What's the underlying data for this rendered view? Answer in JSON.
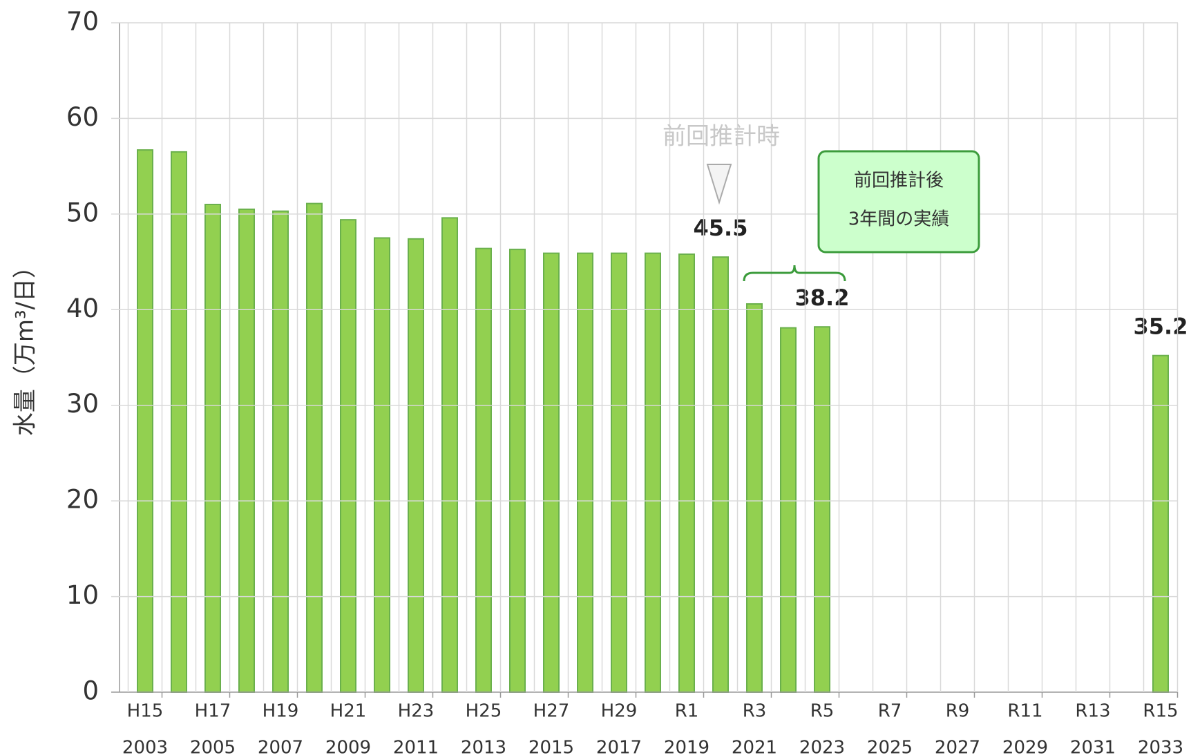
{
  "chart_data": {
    "type": "bar",
    "ylabel": "水量（万m³/日）",
    "categories": [
      "2003",
      null,
      "2005",
      null,
      "2007",
      null,
      "2009",
      null,
      "2011",
      null,
      "2013",
      null,
      "2015",
      null,
      "2017",
      null,
      "2019",
      null,
      "2021",
      null,
      "2023",
      null,
      "2025",
      null,
      "2027",
      null,
      "2029",
      null,
      "2031",
      null,
      "2033"
    ],
    "era_labels": [
      "H15",
      null,
      "H17",
      null,
      "H19",
      null,
      "H21",
      null,
      "H23",
      null,
      "H25",
      null,
      "H27",
      null,
      "H29",
      null,
      "R1",
      null,
      "R3",
      null,
      "R5",
      null,
      "R7",
      null,
      "R9",
      null,
      "R11",
      null,
      "R13",
      null,
      "R15"
    ],
    "values": [
      56.7,
      56.5,
      51.0,
      50.5,
      50.3,
      51.1,
      49.4,
      47.5,
      47.4,
      49.6,
      46.4,
      46.3,
      45.9,
      45.9,
      45.9,
      45.9,
      45.8,
      45.5,
      40.6,
      38.1,
      38.2,
      null,
      null,
      null,
      null,
      null,
      null,
      null,
      null,
      null,
      35.2
    ],
    "value_labels": [
      null,
      null,
      null,
      null,
      null,
      null,
      null,
      null,
      null,
      null,
      null,
      null,
      null,
      null,
      null,
      null,
      null,
      "45.5",
      null,
      null,
      "38.2",
      null,
      null,
      null,
      null,
      null,
      null,
      null,
      null,
      null,
      "35.2"
    ],
    "color": "#92d050",
    "ylim": [
      0,
      70
    ],
    "yticks": [
      0,
      10,
      20,
      30,
      40,
      50,
      60,
      70
    ],
    "grid": true,
    "annotations": {
      "previous": "前回推計時",
      "box": [
        "前回推計後",
        "3年間の実績"
      ]
    }
  }
}
